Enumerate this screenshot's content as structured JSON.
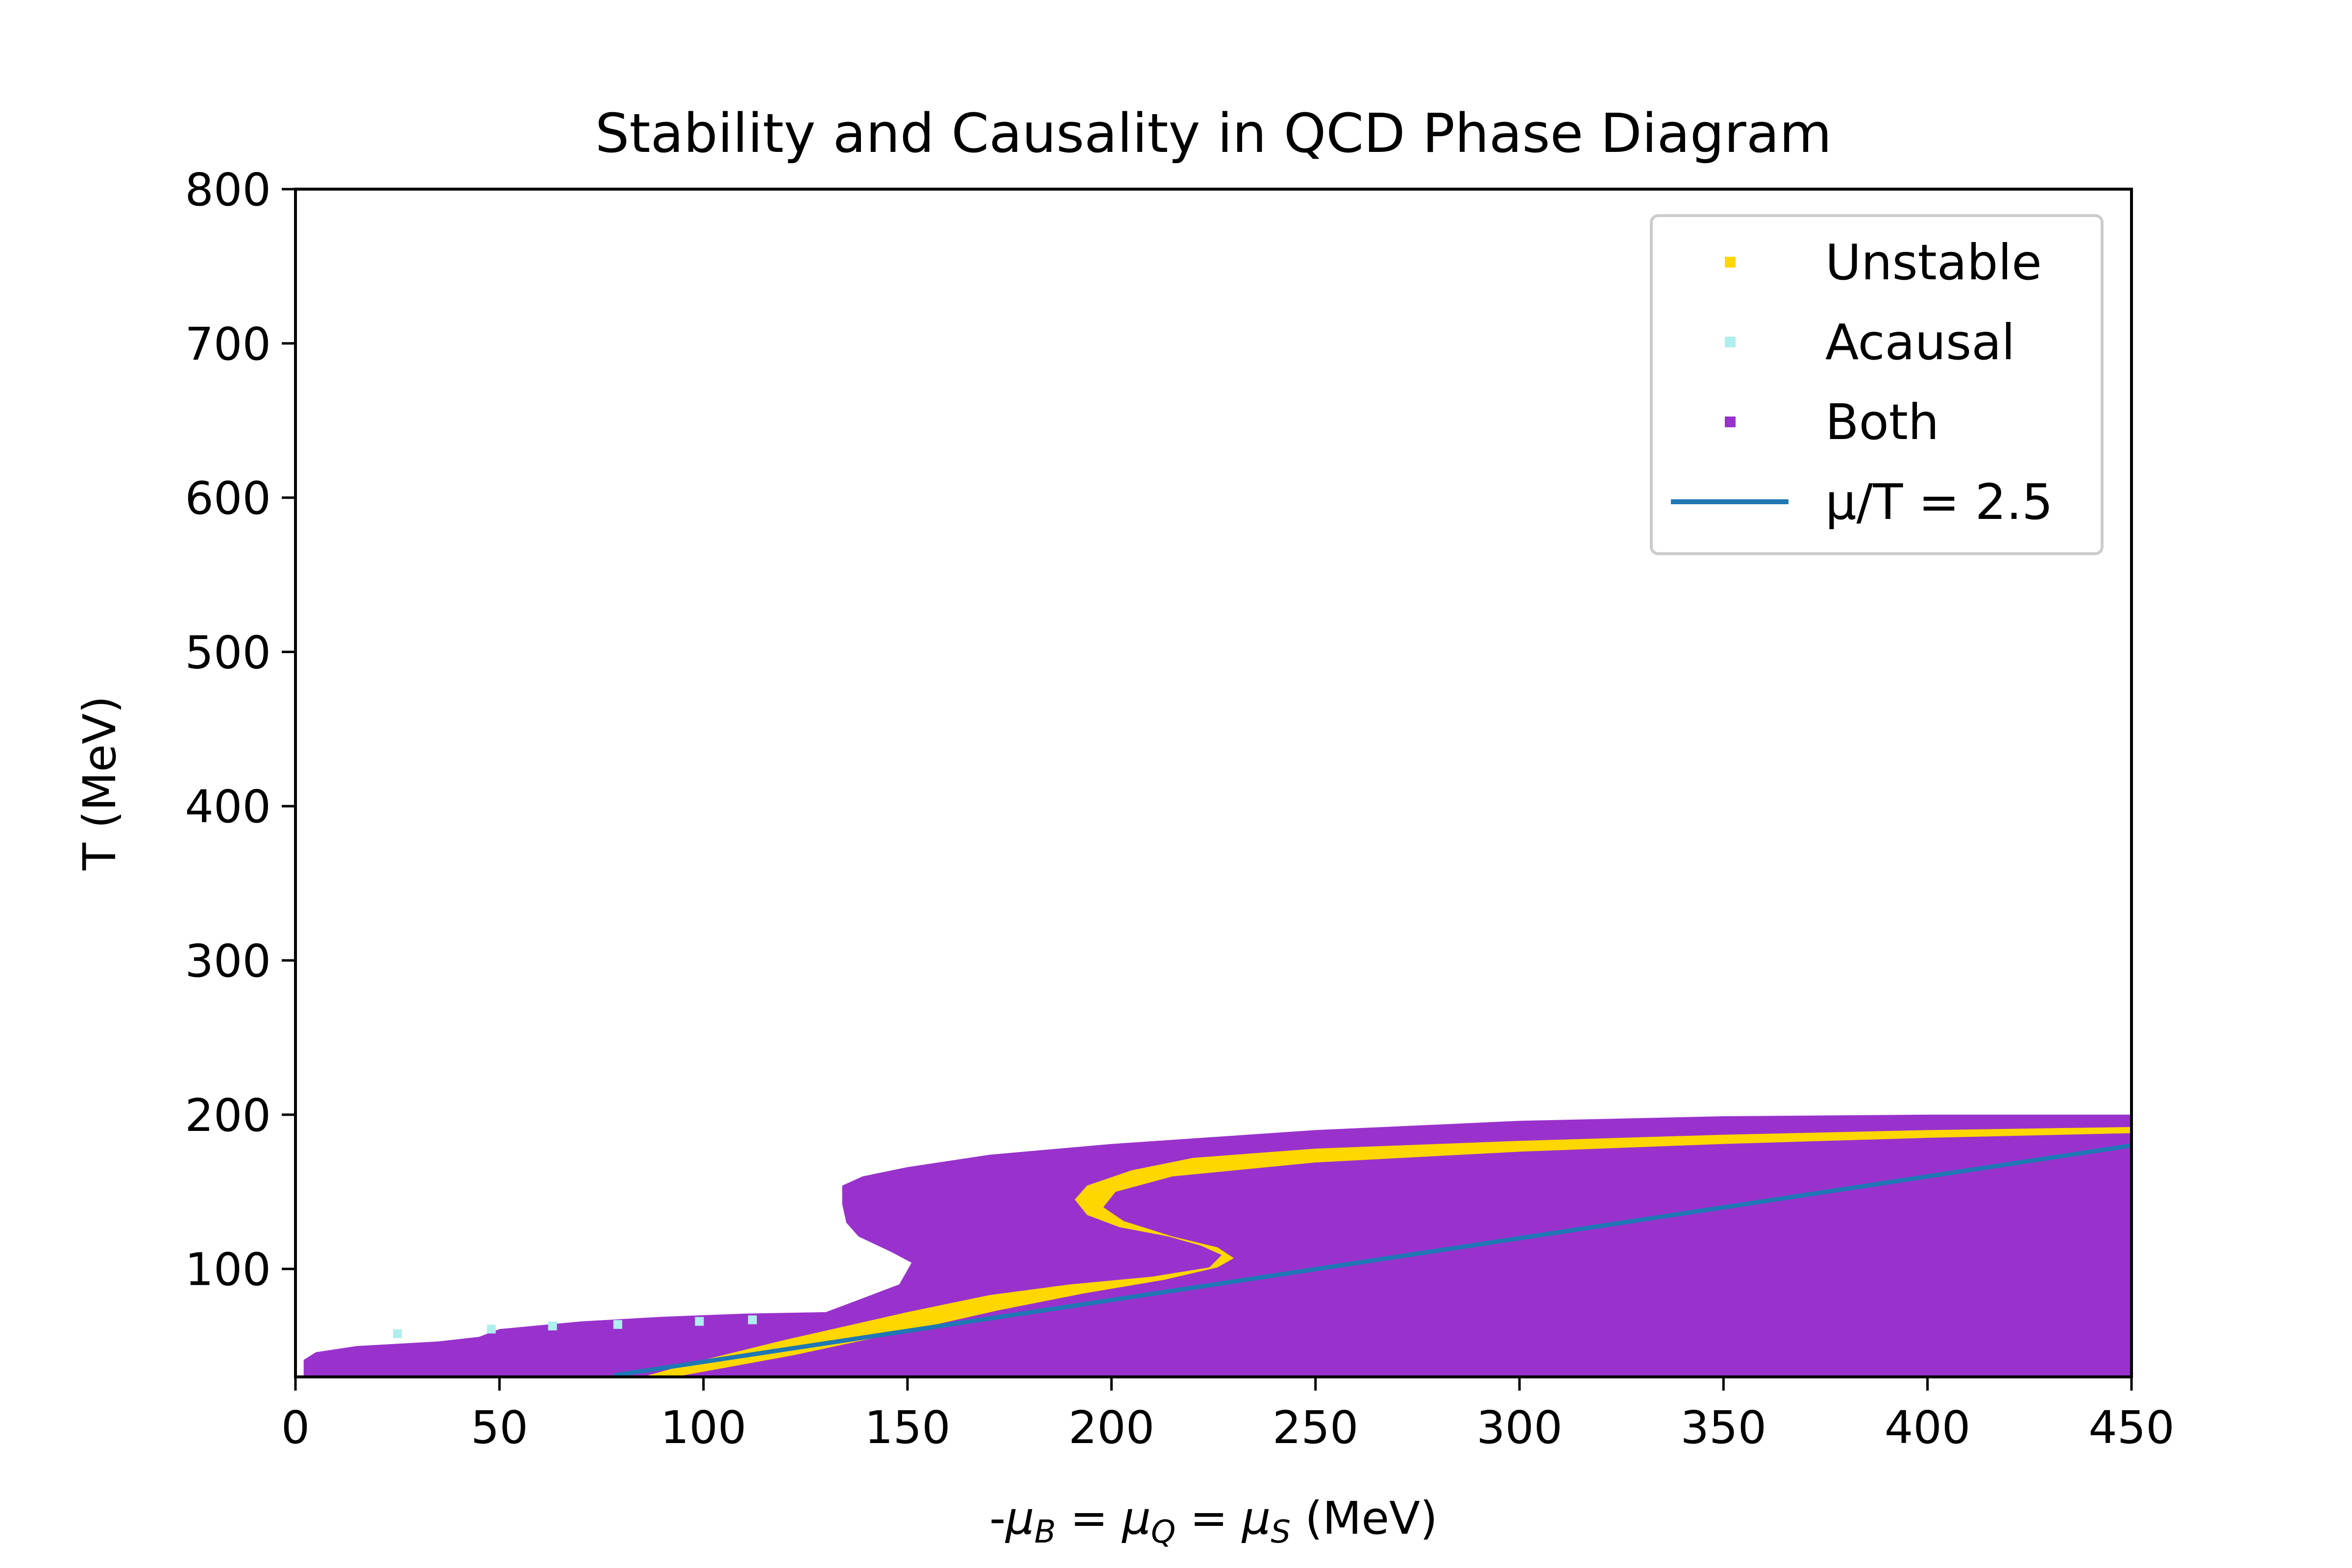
{
  "chart_data": {
    "type": "scatter",
    "title": "Stability and Causality in QCD Phase Diagram",
    "xlabel": "-μ_B = μ_Q = μ_S (MeV)",
    "ylabel": "T (MeV)",
    "xlim": [
      0,
      450
    ],
    "ylim": [
      30,
      800
    ],
    "xticks": [
      0,
      50,
      100,
      150,
      200,
      250,
      300,
      350,
      400,
      450
    ],
    "yticks": [
      100,
      200,
      300,
      400,
      500,
      600,
      700,
      800
    ],
    "legend_position": "upper right",
    "colors": {
      "unstable": "#ffd700",
      "acausal": "#afeeee",
      "both": "#9932cc",
      "line": "#1f77b4"
    },
    "series": [
      {
        "name": "Both",
        "kind": "region",
        "boundary": [
          [
            2,
            30
          ],
          [
            2,
            41
          ],
          [
            5,
            46
          ],
          [
            15,
            50
          ],
          [
            35,
            53
          ],
          [
            45,
            56
          ],
          [
            50,
            61
          ],
          [
            70,
            66
          ],
          [
            90,
            69
          ],
          [
            110,
            71
          ],
          [
            130,
            72
          ],
          [
            134,
            76
          ],
          [
            141,
            83
          ],
          [
            148,
            90
          ],
          [
            151,
            104
          ],
          [
            146,
            111
          ],
          [
            138,
            121
          ],
          [
            135,
            130
          ],
          [
            134,
            142
          ],
          [
            134,
            154
          ],
          [
            139,
            160
          ],
          [
            150,
            166
          ],
          [
            170,
            174
          ],
          [
            200,
            181
          ],
          [
            250,
            190
          ],
          [
            300,
            196
          ],
          [
            350,
            199
          ],
          [
            400,
            200
          ],
          [
            450,
            200
          ],
          [
            450,
            30
          ]
        ]
      },
      {
        "name": "Unstable",
        "kind": "region",
        "boundary": [
          [
            450,
            192
          ],
          [
            400,
            190
          ],
          [
            350,
            187
          ],
          [
            300,
            183
          ],
          [
            250,
            178
          ],
          [
            220,
            172
          ],
          [
            205,
            164
          ],
          [
            194,
            154
          ],
          [
            191,
            145
          ],
          [
            194,
            135
          ],
          [
            202,
            127
          ],
          [
            214,
            121
          ],
          [
            222,
            115
          ],
          [
            227,
            109
          ],
          [
            224,
            101
          ],
          [
            210,
            95
          ],
          [
            190,
            90
          ],
          [
            170,
            83
          ],
          [
            150,
            72
          ],
          [
            120,
            54
          ],
          [
            100,
            41
          ],
          [
            85,
            30
          ],
          [
            93,
            30
          ],
          [
            122,
            44
          ],
          [
            152,
            61
          ],
          [
            172,
            73
          ],
          [
            193,
            84
          ],
          [
            213,
            93
          ],
          [
            226,
            101
          ],
          [
            230,
            107
          ],
          [
            226,
            114
          ],
          [
            215,
            121
          ],
          [
            203,
            131
          ],
          [
            198,
            140
          ],
          [
            201,
            150
          ],
          [
            215,
            160
          ],
          [
            250,
            169
          ],
          [
            300,
            176
          ],
          [
            350,
            181
          ],
          [
            400,
            185
          ],
          [
            450,
            188
          ]
        ]
      },
      {
        "name": "Acausal",
        "kind": "points",
        "points": [
          [
            25,
            58
          ],
          [
            48,
            61
          ],
          [
            63,
            63
          ],
          [
            79,
            64
          ],
          [
            99,
            66
          ],
          [
            112,
            67
          ]
        ]
      },
      {
        "name": "μ/T = 2.5",
        "kind": "line",
        "points": [
          [
            78,
            31
          ],
          [
            450,
            180
          ]
        ]
      }
    ],
    "legend": [
      {
        "label": "Unstable",
        "marker": "square",
        "color": "#ffd700"
      },
      {
        "label": "Acausal",
        "marker": "square",
        "color": "#afeeee"
      },
      {
        "label": "Both",
        "marker": "square",
        "color": "#9932cc"
      },
      {
        "label": "μ/T = 2.5",
        "marker": "line",
        "color": "#1f77b4"
      }
    ]
  }
}
